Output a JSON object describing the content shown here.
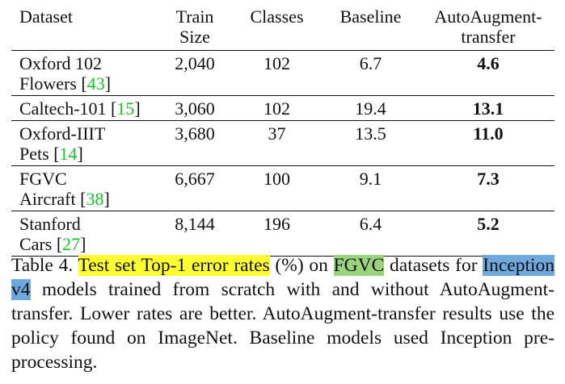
{
  "table": {
    "headers": {
      "dataset": "Dataset",
      "train_size": [
        "Train",
        "Size"
      ],
      "classes": "Classes",
      "baseline": "Baseline",
      "autoaug": [
        "AutoAugment-",
        "transfer"
      ]
    },
    "rows": [
      {
        "name": [
          "Oxford 102",
          "Flowers "
        ],
        "cite": "43",
        "train": "2,040",
        "classes": "102",
        "baseline": "6.7",
        "autoaug": "4.6"
      },
      {
        "name": [
          "Caltech-101 "
        ],
        "cite": "15",
        "train": "3,060",
        "classes": "102",
        "baseline": "19.4",
        "autoaug": "13.1"
      },
      {
        "name": [
          "Oxford-IIIT",
          "Pets "
        ],
        "cite": "14",
        "train": "3,680",
        "classes": "37",
        "baseline": "13.5",
        "autoaug": "11.0"
      },
      {
        "name": [
          "FGVC",
          "Aircraft "
        ],
        "cite": "38",
        "train": "6,667",
        "classes": "100",
        "baseline": "9.1",
        "autoaug": "7.3"
      },
      {
        "name": [
          "Stanford",
          "Cars "
        ],
        "cite": "27",
        "train": "8,144",
        "classes": "196",
        "baseline": "6.4",
        "autoaug": "5.2"
      }
    ]
  },
  "caption": {
    "prefix": "Table 4. ",
    "highlight1": "Test set Top-1 error rates",
    "part2": " (%) on ",
    "highlight2": "FGVC",
    "part3": " datasets for ",
    "highlight3": "Inception v4",
    "part4": " models trained from scratch with and without AutoAugment-transfer. Lower rates are better. AutoAugment-transfer results use the policy found on ImageNet. Baseline models used Inception pre-processing."
  },
  "colors": {
    "highlight_yellow": "#ffff33",
    "highlight_green": "#9ad27e",
    "highlight_blue": "#6fa8dc",
    "citation": "#17c22a"
  }
}
